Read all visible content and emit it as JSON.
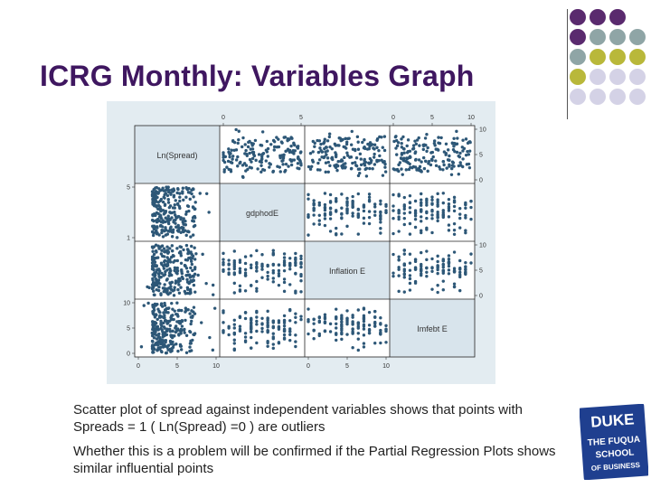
{
  "slide": {
    "title": "ICRG Monthly: Variables Graph",
    "bullets": [
      "Scatter plot of spread against independent variables shows that points with Spreads = 1 ( Ln(Spread) =0 ) are outliers",
      "Whether this is a problem will be confirmed if the Partial Regression Plots shows similar influential points"
    ],
    "logo": {
      "lines": [
        "DUKE",
        "THE FUQUA",
        "SCHOOL",
        "OF BUSINESS"
      ]
    },
    "colors": {
      "title": "#3f1760",
      "plum": "#5a2a6e",
      "teal": "#8fa5a6",
      "olive": "#b9b83a",
      "lavender": "#d4d2e6",
      "point": "#2d5777"
    }
  },
  "chart_data": {
    "type": "scatter",
    "variables": [
      "Ln(Spread)",
      "gdphodE",
      "Inflation E",
      "Imfebt E"
    ],
    "top_ticks": [
      {
        "col": 1,
        "labels": [
          "0",
          "5"
        ]
      },
      {
        "col": 3,
        "labels": [
          "0",
          "5",
          "10"
        ]
      }
    ],
    "right_ticks": [
      {
        "row": 0,
        "labels": [
          "10",
          "5",
          "0"
        ]
      },
      {
        "row": 2,
        "labels": [
          "10",
          "5",
          "0"
        ]
      }
    ],
    "left_ticks": [
      {
        "row": 1,
        "labels": [
          "5",
          "1"
        ]
      },
      {
        "row": 3,
        "labels": [
          "10",
          "5",
          "0"
        ]
      }
    ],
    "bottom_ticks": [
      {
        "col": 0,
        "labels": [
          "0",
          "5",
          "10"
        ]
      },
      {
        "col": 2,
        "labels": [
          "0",
          "5",
          "10"
        ]
      }
    ],
    "grid": false
  }
}
